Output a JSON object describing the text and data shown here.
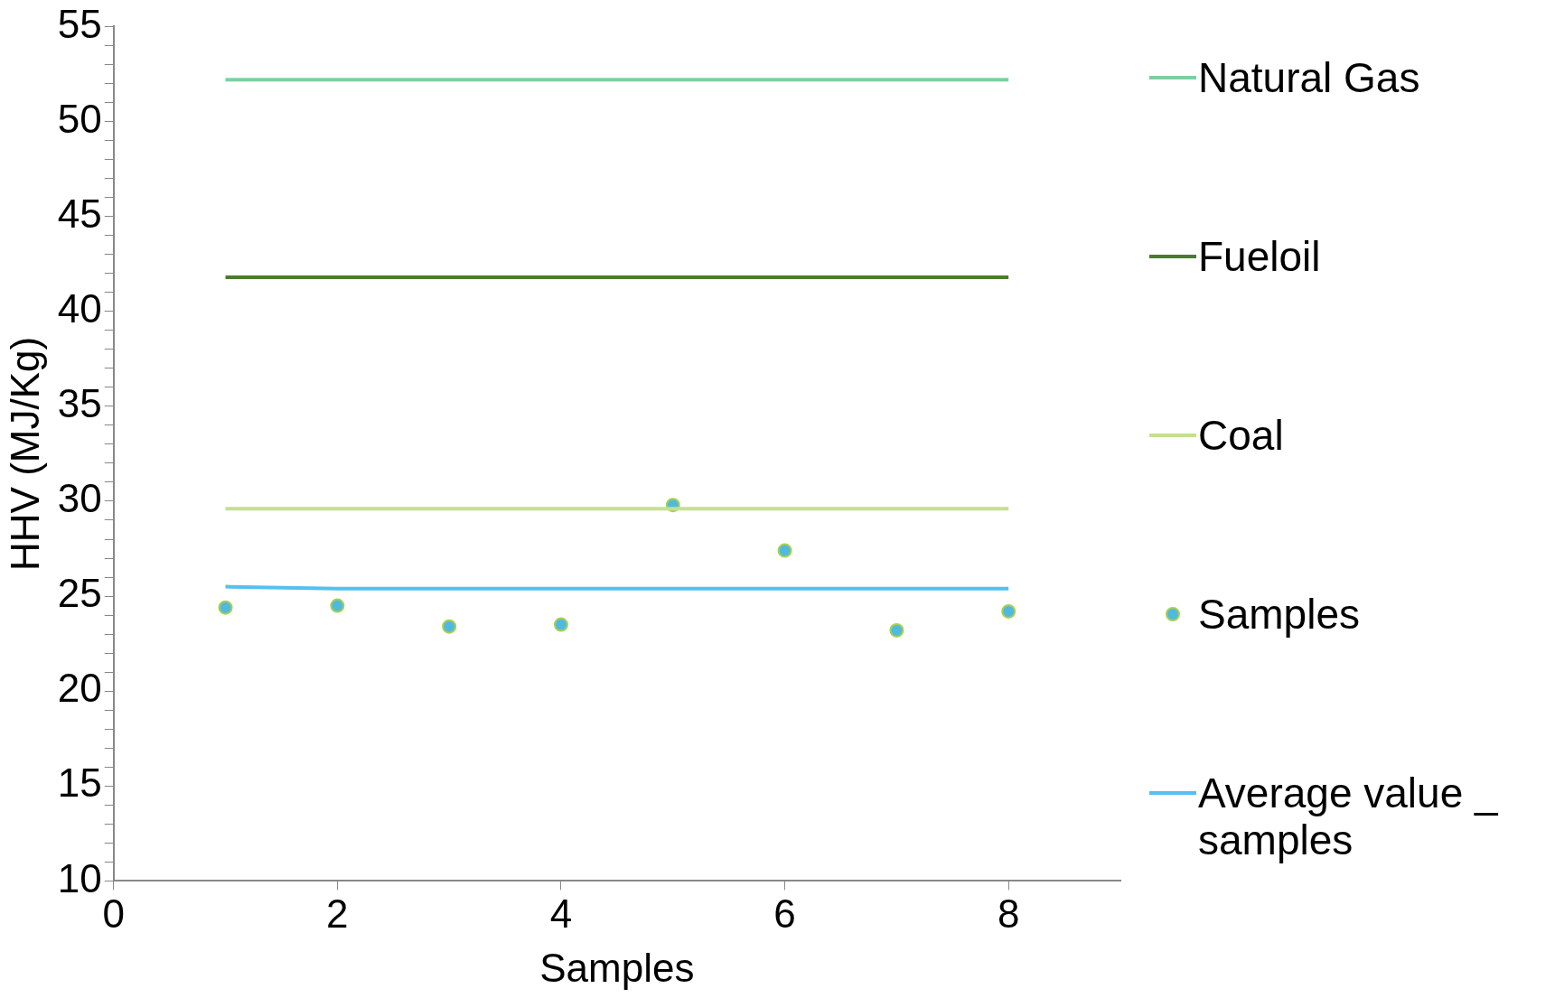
{
  "chart_data": {
    "type": "line",
    "xlabel": "Samples",
    "ylabel": "HHV (MJ/Kg)",
    "xlim": [
      0,
      9
    ],
    "xticks": [
      0,
      2,
      4,
      6,
      8
    ],
    "ylim": [
      10,
      55
    ],
    "yticks": [
      10,
      {
        "value": 11,
        "label": null
      },
      {
        "value": 12,
        "label": null
      },
      {
        "value": 13,
        "label": null
      },
      {
        "value": 14,
        "label": null
      },
      15,
      {
        "value": 16,
        "label": null
      },
      {
        "value": 17,
        "label": null
      },
      {
        "value": 18,
        "label": null
      },
      {
        "value": 19,
        "label": null
      },
      20,
      {
        "value": 21,
        "label": null
      },
      {
        "value": 22,
        "label": null
      },
      {
        "value": 23,
        "label": null
      },
      {
        "value": 24,
        "label": null
      },
      25,
      {
        "value": 26,
        "label": null
      },
      {
        "value": 27,
        "label": null
      },
      {
        "value": 28,
        "label": null
      },
      {
        "value": 29,
        "label": null
      },
      30,
      {
        "value": 31,
        "label": null
      },
      {
        "value": 32,
        "label": null
      },
      {
        "value": 33,
        "label": null
      },
      {
        "value": 34,
        "label": null
      },
      35,
      {
        "value": 36,
        "label": null
      },
      {
        "value": 37,
        "label": null
      },
      {
        "value": 38,
        "label": null
      },
      {
        "value": 39,
        "label": null
      },
      40,
      {
        "value": 41,
        "label": null
      },
      {
        "value": 42,
        "label": null
      },
      {
        "value": 43,
        "label": null
      },
      {
        "value": 44,
        "label": null
      },
      45,
      {
        "value": 46,
        "label": null
      },
      {
        "value": 47,
        "label": null
      },
      {
        "value": 48,
        "label": null
      },
      {
        "value": 49,
        "label": null
      },
      50,
      {
        "value": 51,
        "label": null
      },
      {
        "value": 52,
        "label": null
      },
      {
        "value": 53,
        "label": null
      },
      {
        "value": 54,
        "label": null
      },
      55
    ],
    "x": [
      1,
      2,
      3,
      4,
      5,
      6,
      7,
      8
    ],
    "series": [
      {
        "name": "Natural Gas",
        "color": "#7dcfa0",
        "values": [
          52.2,
          52.2,
          52.2,
          52.2,
          52.2,
          52.2,
          52.2,
          52.2
        ]
      },
      {
        "name": "Fueloil",
        "color": "#4a7c2b",
        "values": [
          41.8,
          41.8,
          41.8,
          41.8,
          41.8,
          41.8,
          41.8,
          41.8
        ]
      },
      {
        "name": "Coal",
        "color": "#c5e08c",
        "values": [
          29.6,
          29.6,
          29.6,
          29.6,
          29.6,
          29.6,
          29.6,
          29.6
        ]
      },
      {
        "name": "Samples",
        "type": "scatter",
        "marker": "circle",
        "color": "#4fb9e0",
        "values": [
          24.4,
          24.5,
          23.4,
          23.5,
          29.8,
          27.4,
          23.2,
          24.2
        ]
      },
      {
        "name": "Average value _ samples",
        "color": "#55c0f0",
        "values": [
          25.5,
          25.4,
          25.4,
          25.4,
          25.4,
          25.4,
          25.4,
          25.4
        ]
      }
    ],
    "grid": false,
    "legend": "right",
    "marker": "none",
    "line_style": "solid"
  }
}
